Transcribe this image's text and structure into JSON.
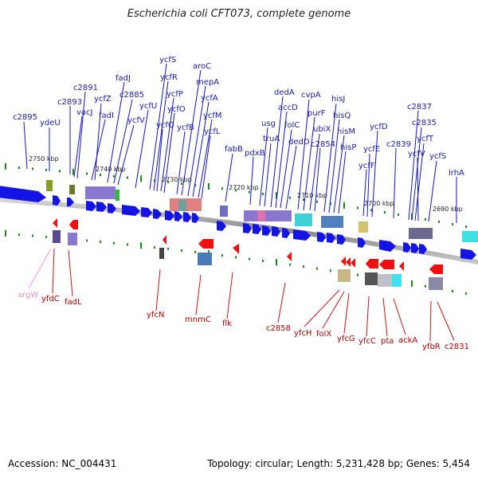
{
  "title": "Escherichia coli CFT073, complete genome",
  "footer": {
    "accession": "Accession: NC_004431",
    "summary": "Topology: circular; Length: 5,231,428 bp; Genes: 5,454"
  },
  "colors": {
    "forward": "#1010e0",
    "reverse": "#e00000",
    "pink": "#f0a0d0",
    "tick": "#1a8a1a",
    "backbone": "#7a7a7a"
  },
  "kbp_labels": [
    "2750 kbp",
    "2740 kbp",
    "2730 kbp",
    "2720 kbp",
    "2710 kbp",
    "2700 kbp",
    "2690 kbp"
  ],
  "forward_genes": [
    "c2895",
    "ydeU",
    "c2893",
    "vacJ",
    "c2891",
    "fadI",
    "ycfZ",
    "fadJ",
    "c2885",
    "ycfV",
    "ycfU",
    "ycfS",
    "ycfR",
    "ycfQ",
    "ycfP",
    "ycfO",
    "ycfB",
    "aroC",
    "mepA",
    "ycfA",
    "ycfM",
    "ycfL",
    "fabB",
    "pdxB",
    "usg",
    "truA",
    "dedA",
    "accD",
    "folC",
    "dedD",
    "cvpA",
    "purF",
    "ubiX",
    "c2854",
    "hisJ",
    "hisQ",
    "hisM",
    "hisP",
    "ycfF",
    "ycfE",
    "ycfD",
    "c2839",
    "c2837",
    "c2835",
    "ycfT",
    "ycfV",
    "ycfS",
    "lrhA"
  ],
  "reverse_genes": [
    "argW",
    "yfdC",
    "fadL",
    "yfcN",
    "mnmC",
    "flk",
    "c2858",
    "yfcH",
    "folX",
    "yfcG",
    "yfcC",
    "pta",
    "ackA",
    "yfbR",
    "c2831"
  ]
}
